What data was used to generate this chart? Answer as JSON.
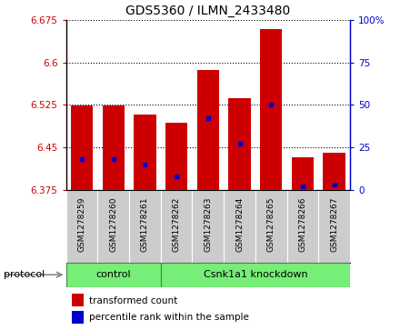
{
  "title": "GDS5360 / ILMN_2433480",
  "samples": [
    "GSM1278259",
    "GSM1278260",
    "GSM1278261",
    "GSM1278262",
    "GSM1278263",
    "GSM1278264",
    "GSM1278265",
    "GSM1278266",
    "GSM1278267"
  ],
  "transformed_counts": [
    6.523,
    6.523,
    6.508,
    6.493,
    6.586,
    6.537,
    6.658,
    6.432,
    6.441
  ],
  "percentile_ranks": [
    18,
    18,
    15,
    8,
    42,
    27,
    50,
    2,
    3
  ],
  "ymin": 6.375,
  "ymax": 6.675,
  "yticks": [
    6.375,
    6.45,
    6.525,
    6.6,
    6.675
  ],
  "y2ticks": [
    0,
    25,
    50,
    75,
    100
  ],
  "bar_color": "#cc0000",
  "dot_color": "#0000cc",
  "protocol_groups": [
    {
      "label": "control",
      "start": 0,
      "end": 3
    },
    {
      "label": "Csnk1a1 knockdown",
      "start": 3,
      "end": 9
    }
  ],
  "protocol_bg_color": "#77ee77",
  "sample_bg_color": "#cccccc",
  "legend_items": [
    {
      "color": "#cc0000",
      "label": "transformed count"
    },
    {
      "color": "#0000cc",
      "label": "percentile rank within the sample"
    }
  ],
  "bar_width": 0.7,
  "title_fontsize": 10,
  "tick_fontsize": 7.5,
  "sample_fontsize": 6.5
}
